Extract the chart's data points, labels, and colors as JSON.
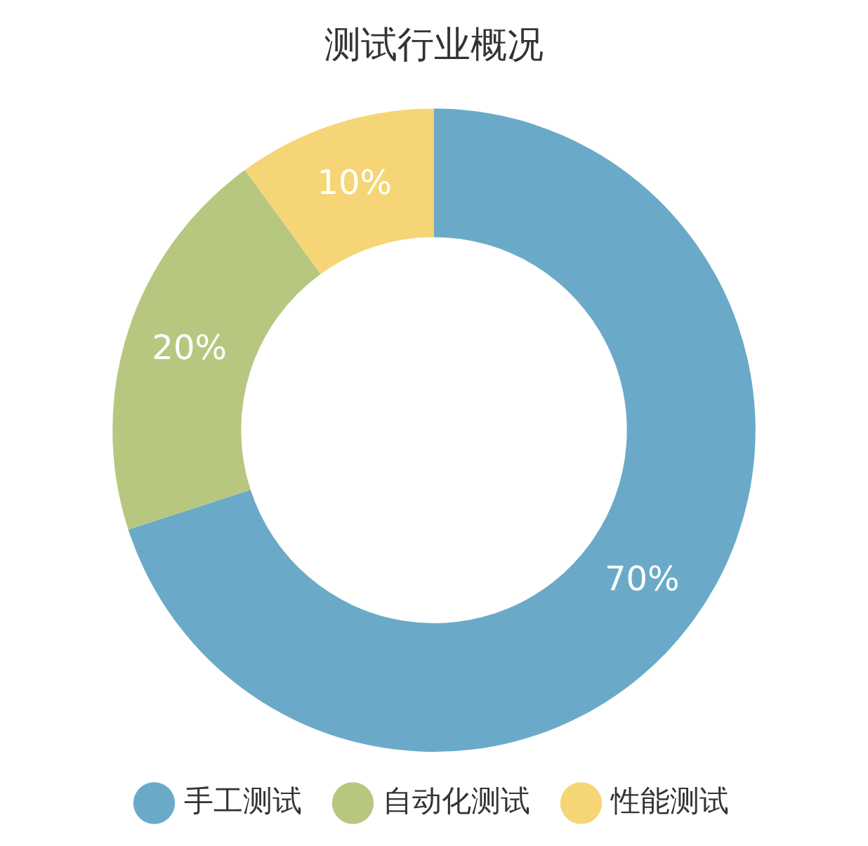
{
  "chart_data": {
    "type": "donut",
    "title": "测试行业概况",
    "categories": [
      "手工测试",
      "自动化测试",
      "性能测试"
    ],
    "values": [
      70,
      20,
      10
    ],
    "colors": [
      "#6aaac8",
      "#b8c780",
      "#f5d575"
    ],
    "value_labels": [
      "70%",
      "20%",
      "10%"
    ],
    "legend": "bottom"
  }
}
